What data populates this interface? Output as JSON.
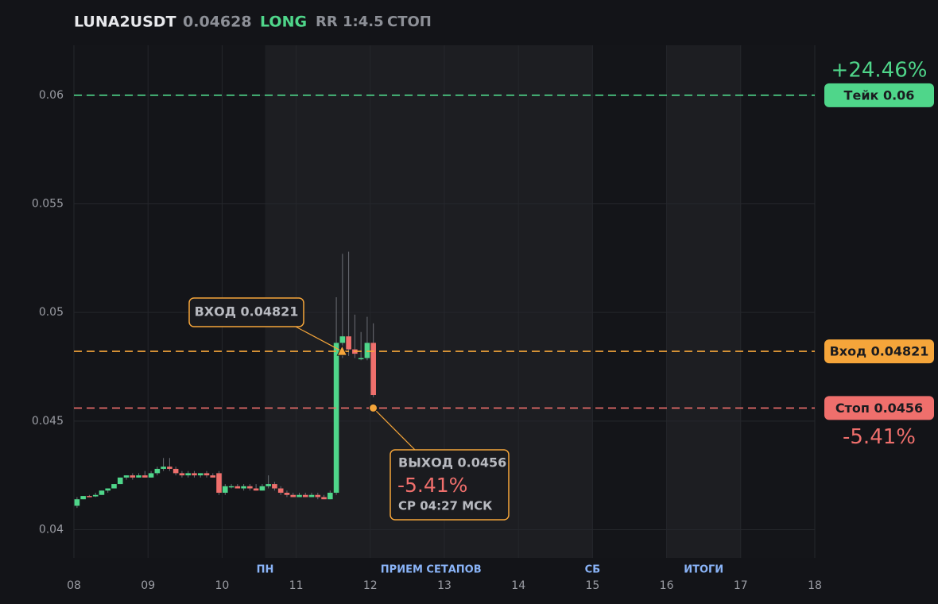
{
  "header": {
    "symbol": "LUNA2USDT",
    "price": "0.04628",
    "side": "LONG",
    "rr": "RR 1:4.5",
    "status": "СТОП"
  },
  "chart_data": {
    "type": "candlestick",
    "xlim": [
      8,
      18
    ],
    "xticks": [
      {
        "value": 8,
        "label": "08"
      },
      {
        "value": 9,
        "label": "09"
      },
      {
        "value": 10,
        "label": "10"
      },
      {
        "value": 11,
        "label": "11"
      },
      {
        "value": 12,
        "label": "12"
      },
      {
        "value": 13,
        "label": "13"
      },
      {
        "value": 14,
        "label": "14"
      },
      {
        "value": 15,
        "label": "15"
      },
      {
        "value": 16,
        "label": "16"
      },
      {
        "value": 17,
        "label": "17"
      },
      {
        "value": 18,
        "label": "18"
      }
    ],
    "ylim": [
      0.0387,
      0.0623
    ],
    "yticks": [
      0.04,
      0.045,
      0.05,
      0.055,
      0.06
    ],
    "grid": true,
    "up_color": "#4fd68a",
    "down_color": "#ef6f6c",
    "shaded": [
      {
        "from": 10.58,
        "to": 15
      },
      {
        "from": 16,
        "to": 17
      }
    ],
    "sessions": [
      {
        "x": 10.58,
        "label": "ПН"
      },
      {
        "x": 12.82,
        "label": "ПРИЕМ СЕТАПОВ"
      },
      {
        "x": 15,
        "label": "СБ"
      },
      {
        "x": 16.5,
        "label": "ИТОГИ"
      }
    ],
    "x": [
      8.0417,
      8.125,
      8.2083,
      8.2917,
      8.375,
      8.4583,
      8.5417,
      8.625,
      8.7083,
      8.7917,
      8.875,
      8.9583,
      9.0417,
      9.125,
      9.2083,
      9.2917,
      9.375,
      9.4583,
      9.5417,
      9.625,
      9.7083,
      9.7917,
      9.875,
      9.9583,
      10.0417,
      10.125,
      10.2083,
      10.2917,
      10.375,
      10.4583,
      10.5417,
      10.625,
      10.7083,
      10.7917,
      10.875,
      10.9583,
      11.0417,
      11.125,
      11.2083,
      11.2917,
      11.375,
      11.4583,
      11.5417,
      11.625,
      11.7083,
      11.7917,
      11.875,
      11.9583,
      12.0417
    ],
    "open": [
      0.0411,
      0.0414,
      0.04155,
      0.04153,
      0.0416,
      0.0418,
      0.0419,
      0.0421,
      0.0424,
      0.0425,
      0.0424,
      0.0425,
      0.0424,
      0.0426,
      0.0428,
      0.0429,
      0.0428,
      0.0426,
      0.0425,
      0.0426,
      0.0425,
      0.0426,
      0.0425,
      0.0426,
      0.0417,
      0.042,
      0.042,
      0.0419,
      0.042,
      0.0419,
      0.0418,
      0.042,
      0.0421,
      0.0419,
      0.0417,
      0.0416,
      0.0415,
      0.0416,
      0.0415,
      0.0416,
      0.0415,
      0.0414,
      0.0417,
      0.0486,
      0.0489,
      0.0483,
      0.0479,
      0.0479,
      0.0486
    ],
    "high": [
      0.0415,
      0.04155,
      0.0416,
      0.0417,
      0.0418,
      0.0419,
      0.0421,
      0.0424,
      0.0425,
      0.0426,
      0.0426,
      0.0427,
      0.0427,
      0.0429,
      0.0433,
      0.0433,
      0.0429,
      0.0427,
      0.0427,
      0.0427,
      0.0426,
      0.0427,
      0.0426,
      0.0427,
      0.0421,
      0.0421,
      0.0421,
      0.0421,
      0.0421,
      0.0421,
      0.0421,
      0.0425,
      0.0422,
      0.042,
      0.0418,
      0.0417,
      0.0417,
      0.0417,
      0.0417,
      0.0417,
      0.0416,
      0.0418,
      0.0507,
      0.0527,
      0.0528,
      0.0499,
      0.0491,
      0.0498,
      0.0495
    ],
    "low": [
      0.041,
      0.0414,
      0.0415,
      0.0415,
      0.0416,
      0.0417,
      0.0419,
      0.0421,
      0.0423,
      0.0423,
      0.0424,
      0.0424,
      0.0424,
      0.0425,
      0.0427,
      0.0427,
      0.0425,
      0.0424,
      0.0424,
      0.0424,
      0.0424,
      0.0424,
      0.0424,
      0.0416,
      0.0416,
      0.0419,
      0.0419,
      0.0418,
      0.0418,
      0.0418,
      0.0418,
      0.0419,
      0.0418,
      0.0416,
      0.0415,
      0.0415,
      0.0415,
      0.0415,
      0.0415,
      0.0414,
      0.0414,
      0.0414,
      0.0416,
      0.0479,
      0.048,
      0.0479,
      0.0478,
      0.0478,
      0.0461
    ],
    "close": [
      0.0414,
      0.04155,
      0.04153,
      0.0416,
      0.0418,
      0.0419,
      0.0421,
      0.0424,
      0.0425,
      0.0424,
      0.0425,
      0.0424,
      0.0426,
      0.0428,
      0.0429,
      0.0428,
      0.0426,
      0.0425,
      0.0426,
      0.0425,
      0.0426,
      0.0425,
      0.0424,
      0.0417,
      0.042,
      0.042,
      0.0419,
      0.042,
      0.0419,
      0.0418,
      0.042,
      0.0421,
      0.0419,
      0.0417,
      0.0416,
      0.0415,
      0.0416,
      0.0415,
      0.0416,
      0.0415,
      0.0414,
      0.0417,
      0.0486,
      0.0489,
      0.0483,
      0.0481,
      0.0479,
      0.0486,
      0.0462
    ],
    "levels": [
      {
        "value": 0.06,
        "label": "Тейк 0.06",
        "color": "#4fd68a",
        "change": "+24.46%"
      },
      {
        "value": 0.04821,
        "label": "Вход 0.04821",
        "color": "#f5a53a"
      },
      {
        "value": 0.0456,
        "label": "Стоп 0.0456",
        "color": "#ef6f6c",
        "change": "-5.41%"
      }
    ],
    "entry": {
      "x": 11.62,
      "y": 0.04821,
      "label": "ВХОД 0.04821"
    },
    "exit": {
      "x": 12.04,
      "y": 0.0456,
      "label": "ВЫХОД 0.0456",
      "change": "-5.41%",
      "time": "СР 04:27 МСК"
    }
  }
}
